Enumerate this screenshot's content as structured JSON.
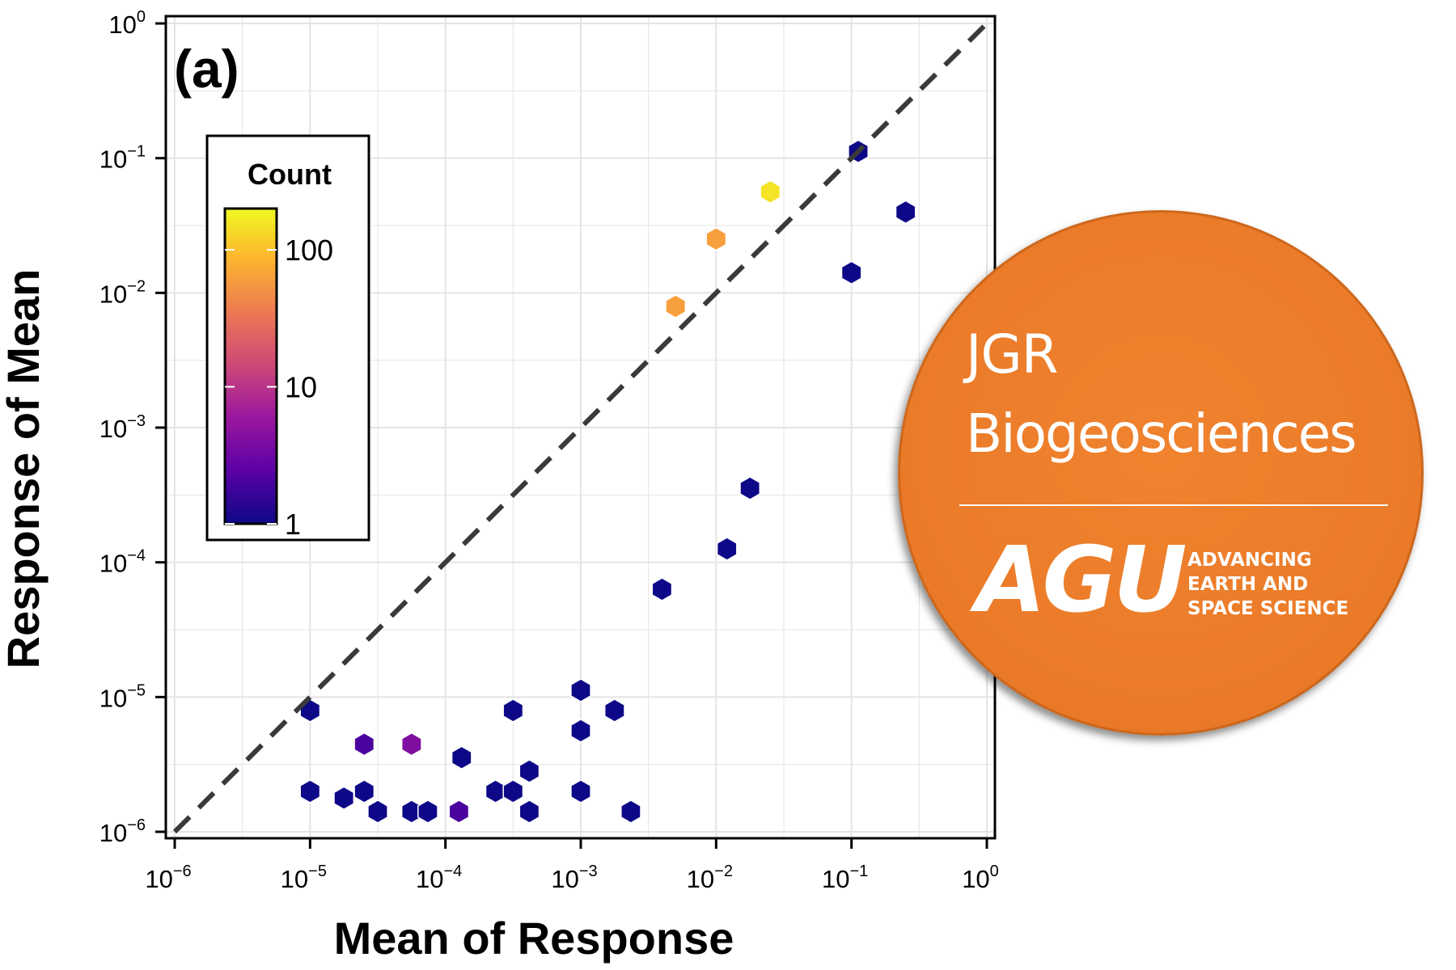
{
  "chart_data": {
    "type": "hexbin",
    "panel_label": "(a)",
    "xlabel": "Mean of Response",
    "ylabel": "Response of Mean",
    "x_scale": "log",
    "y_scale": "log",
    "xlim": [
      1e-06,
      1
    ],
    "ylim": [
      1e-06,
      1
    ],
    "grid": true,
    "reference_line": "y = x (dashed)",
    "x_ticks": [
      {
        "base": "10",
        "exp": "−6",
        "value": 1e-06
      },
      {
        "base": "10",
        "exp": "−5",
        "value": 1e-05
      },
      {
        "base": "10",
        "exp": "−4",
        "value": 0.0001
      },
      {
        "base": "10",
        "exp": "−3",
        "value": 0.001
      },
      {
        "base": "10",
        "exp": "−2",
        "value": 0.01
      },
      {
        "base": "10",
        "exp": "−1",
        "value": 0.1
      },
      {
        "base": "10",
        "exp": "0",
        "value": 1
      }
    ],
    "y_ticks": [
      {
        "base": "10",
        "exp": "−6",
        "value": 1e-06
      },
      {
        "base": "10",
        "exp": "−5",
        "value": 1e-05
      },
      {
        "base": "10",
        "exp": "−4",
        "value": 0.0001
      },
      {
        "base": "10",
        "exp": "−3",
        "value": 0.001
      },
      {
        "base": "10",
        "exp": "−2",
        "value": 0.01
      },
      {
        "base": "10",
        "exp": "−1",
        "value": 0.1
      },
      {
        "base": "10",
        "exp": "0",
        "value": 1
      }
    ],
    "colorbar": {
      "title": "Count",
      "scale": "log",
      "range": [
        1,
        200
      ],
      "ticks": [
        {
          "label": "100",
          "value": 100
        },
        {
          "label": "10",
          "value": 10
        },
        {
          "label": "1",
          "value": 1
        }
      ],
      "colormap": [
        "#0d0887",
        "#5c01a6",
        "#9c179e",
        "#cc4778",
        "#ed7953",
        "#fdb42f",
        "#f0f921"
      ],
      "legend_position": "upper-left"
    },
    "hexbins": [
      {
        "log_x": -5.0,
        "log_y": -5.1,
        "count": 1
      },
      {
        "log_x": -4.75,
        "log_y": -5.75,
        "count": 1
      },
      {
        "log_x": -4.6,
        "log_y": -5.35,
        "count": 2
      },
      {
        "log_x": -4.25,
        "log_y": -5.35,
        "count": 4
      },
      {
        "log_x": -5.0,
        "log_y": -5.7,
        "count": 1
      },
      {
        "log_x": -4.6,
        "log_y": -5.7,
        "count": 1
      },
      {
        "log_x": -4.5,
        "log_y": -5.85,
        "count": 1
      },
      {
        "log_x": -4.25,
        "log_y": -5.85,
        "count": 1
      },
      {
        "log_x": -4.13,
        "log_y": -5.85,
        "count": 1
      },
      {
        "log_x": -3.9,
        "log_y": -5.85,
        "count": 2
      },
      {
        "log_x": -3.88,
        "log_y": -5.45,
        "count": 1
      },
      {
        "log_x": -3.63,
        "log_y": -5.7,
        "count": 1
      },
      {
        "log_x": -3.5,
        "log_y": -5.7,
        "count": 1
      },
      {
        "log_x": -3.38,
        "log_y": -5.55,
        "count": 1
      },
      {
        "log_x": -3.38,
        "log_y": -5.85,
        "count": 1
      },
      {
        "log_x": -3.0,
        "log_y": -5.7,
        "count": 1
      },
      {
        "log_x": -2.63,
        "log_y": -5.85,
        "count": 1
      },
      {
        "log_x": -3.5,
        "log_y": -5.1,
        "count": 1
      },
      {
        "log_x": -3.0,
        "log_y": -5.25,
        "count": 1
      },
      {
        "log_x": -3.0,
        "log_y": -4.95,
        "count": 1
      },
      {
        "log_x": -2.75,
        "log_y": -5.1,
        "count": 1
      },
      {
        "log_x": -2.4,
        "log_y": -4.2,
        "count": 1
      },
      {
        "log_x": -1.92,
        "log_y": -3.9,
        "count": 1
      },
      {
        "log_x": -1.75,
        "log_y": -3.45,
        "count": 1
      },
      {
        "log_x": -0.95,
        "log_y": -0.95,
        "count": 1
      },
      {
        "log_x": -0.6,
        "log_y": -1.4,
        "count": 1
      },
      {
        "log_x": -1.0,
        "log_y": -1.85,
        "count": 1
      },
      {
        "log_x": -2.0,
        "log_y": -1.6,
        "count": 60
      },
      {
        "log_x": -1.6,
        "log_y": -1.25,
        "count": 150
      },
      {
        "log_x": -2.3,
        "log_y": -2.1,
        "count": 60
      }
    ]
  },
  "badge": {
    "journal_line1": "JGR",
    "journal_line2": "Biogeosciences",
    "org_logo": "AGU",
    "org_tagline": [
      "ADVANCING",
      "EARTH AND",
      "SPACE SCIENCE"
    ],
    "colors": {
      "background": "#ea7a28",
      "text": "#ffffff"
    }
  }
}
